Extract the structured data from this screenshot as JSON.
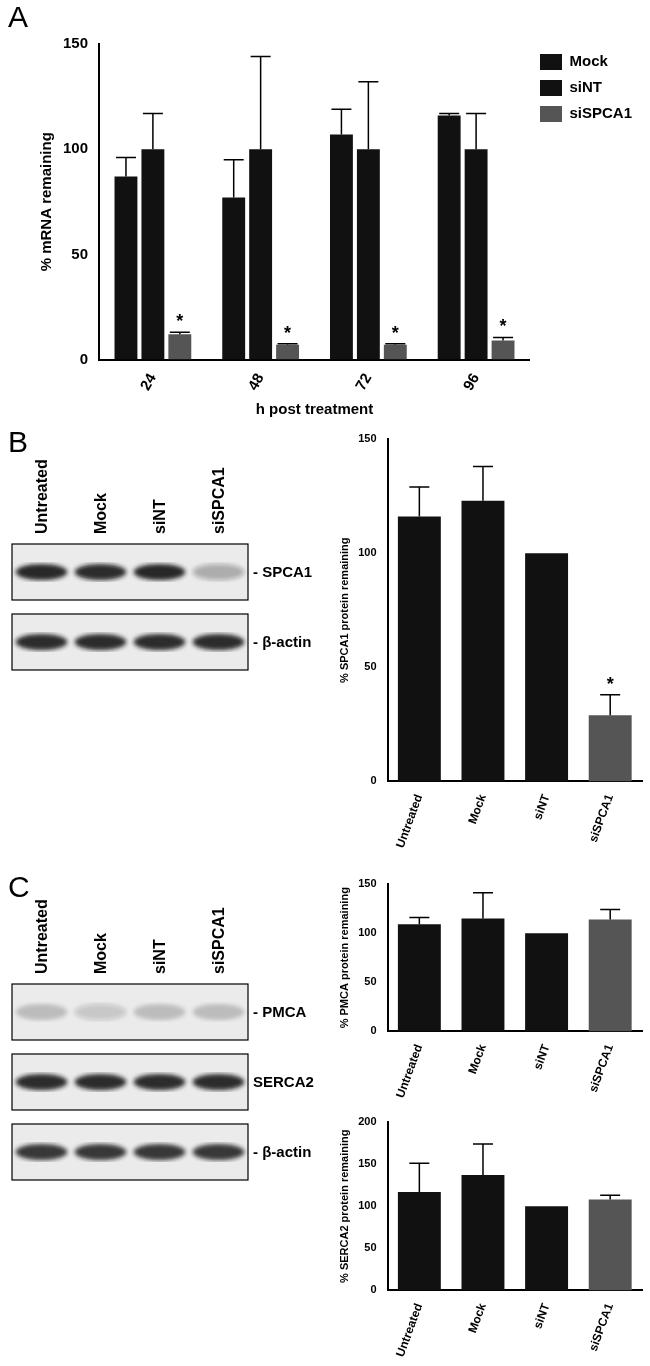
{
  "chart_data": [
    {
      "panel": "A",
      "type": "bar",
      "categories": [
        "24",
        "48",
        "72",
        "96"
      ],
      "x_label": "h post treatment",
      "y_label": "% mRNA remaining",
      "ylim": [
        0,
        150
      ],
      "yticks": [
        0,
        50,
        100,
        150
      ],
      "grid": false,
      "legend": "top-right",
      "series": [
        {
          "name": "Mock",
          "color": "#111111",
          "values": [
            87,
            77,
            107,
            116
          ],
          "errors": [
            9,
            18,
            12,
            1
          ]
        },
        {
          "name": "siNT",
          "color": "#111111",
          "values": [
            100,
            100,
            100,
            100
          ],
          "errors": [
            17,
            44,
            32,
            17
          ]
        },
        {
          "name": "siSPCA1",
          "color": "#555555",
          "values": [
            12,
            7,
            7,
            9
          ],
          "errors": [
            1,
            0.5,
            0.5,
            1.5
          ]
        }
      ],
      "annotations": [
        {
          "category": "24",
          "series": "siSPCA1",
          "text": "*"
        },
        {
          "category": "48",
          "series": "siSPCA1",
          "text": "*"
        },
        {
          "category": "72",
          "series": "siSPCA1",
          "text": "*"
        },
        {
          "category": "96",
          "series": "siSPCA1",
          "text": "*"
        }
      ]
    },
    {
      "panel": "B",
      "type": "bar",
      "categories": [
        "Untreated",
        "Mock",
        "siNT",
        "siSPCA1"
      ],
      "y_label": "% SPCA1 protein remaining",
      "ylim": [
        0,
        150
      ],
      "yticks": [
        0,
        50,
        100,
        150
      ],
      "grid": false,
      "values": [
        116,
        123,
        100,
        29
      ],
      "errors": [
        13,
        15,
        0,
        9
      ],
      "colors": [
        "#111111",
        "#111111",
        "#111111",
        "#555555"
      ],
      "annotations": [
        {
          "category": "siSPCA1",
          "text": "*"
        }
      ]
    },
    {
      "panel": "C",
      "type": "bar",
      "categories": [
        "Untreated",
        "Mock",
        "siNT",
        "siSPCA1"
      ],
      "y_label": "% PMCA protein remaining",
      "ylim": [
        0,
        150
      ],
      "yticks": [
        0,
        50,
        100,
        150
      ],
      "grid": false,
      "values": [
        109,
        115,
        100,
        114
      ],
      "errors": [
        7,
        26,
        0,
        10
      ],
      "colors": [
        "#111111",
        "#111111",
        "#111111",
        "#555555"
      ]
    },
    {
      "panel": "C",
      "type": "bar",
      "categories": [
        "Untreated",
        "Mock",
        "siNT",
        "siSPCA1"
      ],
      "y_label": "% SERCA2 protein remaining",
      "ylim": [
        0,
        200
      ],
      "yticks": [
        0,
        50,
        100,
        150,
        200
      ],
      "grid": false,
      "values": [
        117,
        137,
        100,
        108
      ],
      "errors": [
        34,
        37,
        0,
        5
      ],
      "colors": [
        "#111111",
        "#111111",
        "#111111",
        "#555555"
      ]
    }
  ],
  "blots": [
    {
      "panel": "B",
      "lanes": [
        "Untreated",
        "Mock",
        "siNT",
        "siSPCA1"
      ],
      "rows": [
        {
          "label": "- SPCA1",
          "intensity": [
            0.95,
            0.9,
            0.95,
            0.3
          ]
        },
        {
          "label": "- β-actin",
          "intensity": [
            0.9,
            0.9,
            0.9,
            0.9
          ]
        }
      ]
    },
    {
      "panel": "C",
      "lanes": [
        "Untreated",
        "Mock",
        "siNT",
        "siSPCA1"
      ],
      "rows": [
        {
          "label": "- PMCA",
          "intensity": [
            0.2,
            0.18,
            0.2,
            0.2
          ]
        },
        {
          "label": "SERCA2",
          "intensity": [
            0.9,
            0.9,
            0.9,
            0.9
          ]
        },
        {
          "label": "- β-actin",
          "intensity": [
            0.85,
            0.85,
            0.85,
            0.85
          ]
        }
      ]
    }
  ]
}
